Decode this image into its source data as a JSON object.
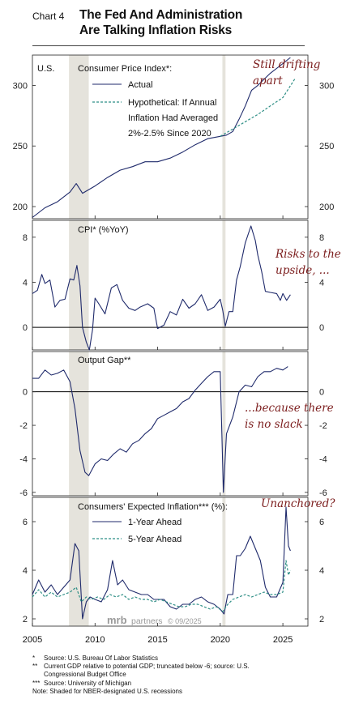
{
  "header": {
    "chart_number": "Chart 4",
    "title_line1": "The Fed And Administration",
    "title_line2": "Are Talking Inflation Risks"
  },
  "watermark": {
    "brand": "mrb",
    "word": "partners",
    "date": "© 09/2025"
  },
  "colors": {
    "actual": "#1f2a6b",
    "hypothetical": "#2f8f86",
    "annotation": "#7b1c1c",
    "recession": "#e5e3dc"
  },
  "footnotes": [
    {
      "mark": "*",
      "text": "Source: U.S. Bureau Of Labor Statistics"
    },
    {
      "mark": "**",
      "text": "Current GDP relative to potential GDP; truncated below -6; source: U.S."
    },
    {
      "mark": "",
      "text": "Congressional Budget Office"
    },
    {
      "mark": "***",
      "text": "Source: University of Michigan"
    },
    {
      "mark": "",
      "text": "Note: Shaded for NBER-designated U.S. recessions"
    }
  ],
  "chart_data": [
    {
      "type": "line",
      "corner_label": "U.S.",
      "title": "Consumer Price Index*:",
      "annotation": [
        "Still drifting",
        "apart"
      ],
      "ylim": [
        190,
        325
      ],
      "yticks": [
        200,
        250,
        300
      ],
      "recessions": [
        [
          2007.92,
          2009.5
        ],
        [
          2020.17,
          2020.42
        ]
      ],
      "legend": {
        "placement": "top-left",
        "entries": [
          "Actual",
          "Hypothetical: If Annual",
          "Inflation Had Averaged",
          "2%-2.5% Since 2020"
        ]
      },
      "series": [
        {
          "name": "Actual",
          "style": "solid",
          "color": "#1f2a6b",
          "x": [
            2005.0,
            2006.0,
            2007.0,
            2008.0,
            2008.5,
            2009.0,
            2010.0,
            2011.0,
            2012.0,
            2013.0,
            2014.0,
            2015.0,
            2016.0,
            2017.0,
            2018.0,
            2019.0,
            2020.0,
            2020.5,
            2021.0,
            2021.5,
            2022.0,
            2022.5,
            2023.0,
            2024.0,
            2025.0,
            2025.6
          ],
          "y": [
            191,
            199,
            204,
            212,
            219,
            211,
            217,
            224,
            230,
            233,
            237,
            237,
            240,
            245,
            251,
            256,
            258,
            259,
            262,
            272,
            283,
            296,
            300,
            310,
            318,
            323
          ]
        },
        {
          "name": "Hypothetical",
          "style": "dashed",
          "color": "#2f8f86",
          "x": [
            2020.0,
            2021.0,
            2022.0,
            2023.0,
            2024.0,
            2025.0,
            2026.0
          ],
          "y": [
            258,
            264,
            270,
            276,
            283,
            290,
            306
          ]
        }
      ]
    },
    {
      "type": "line",
      "title": "CPI* (%YoY)",
      "annotation": [
        "Risks to the",
        "upside, ..."
      ],
      "ylim": [
        -2,
        9.5
      ],
      "yticks": [
        0,
        4,
        8
      ],
      "zero_line": true,
      "recessions": [
        [
          2007.92,
          2009.5
        ],
        [
          2020.17,
          2020.42
        ]
      ],
      "series": [
        {
          "name": "CPI YoY",
          "style": "solid",
          "color": "#1f2a6b",
          "x": [
            2005.0,
            2005.4,
            2005.75,
            2006.0,
            2006.4,
            2006.8,
            2007.2,
            2007.6,
            2008.0,
            2008.3,
            2008.55,
            2008.8,
            2009.0,
            2009.3,
            2009.55,
            2009.8,
            2010.0,
            2010.3,
            2010.8,
            2011.3,
            2011.75,
            2012.2,
            2012.7,
            2013.2,
            2013.6,
            2014.2,
            2014.7,
            2015.0,
            2015.5,
            2016.0,
            2016.5,
            2017.0,
            2017.5,
            2018.0,
            2018.5,
            2019.0,
            2019.5,
            2020.0,
            2020.2,
            2020.4,
            2020.7,
            2021.0,
            2021.3,
            2021.6,
            2022.0,
            2022.45,
            2022.8,
            2023.0,
            2023.3,
            2023.6,
            2024.0,
            2024.5,
            2024.8,
            2025.0,
            2025.3,
            2025.6
          ],
          "y": [
            3.0,
            3.3,
            4.7,
            3.9,
            4.2,
            1.8,
            2.4,
            2.5,
            4.3,
            4.2,
            5.5,
            3.7,
            0.0,
            -1.3,
            -2.0,
            -0.2,
            2.6,
            2.1,
            1.2,
            3.5,
            3.8,
            2.4,
            1.7,
            1.5,
            1.8,
            2.1,
            1.7,
            -0.1,
            0.2,
            1.4,
            1.1,
            2.5,
            1.7,
            2.1,
            2.9,
            1.5,
            1.8,
            2.5,
            1.5,
            0.1,
            1.4,
            1.4,
            4.2,
            5.4,
            7.5,
            9.0,
            7.7,
            6.4,
            5.0,
            3.2,
            3.1,
            3.0,
            2.4,
            3.0,
            2.4,
            2.9
          ]
        }
      ]
    },
    {
      "type": "line",
      "title": "Output Gap**",
      "annotation": [
        "...because there",
        "is no slack"
      ],
      "ylim": [
        -6.2,
        2.4
      ],
      "yticks": [
        -6,
        -4,
        -2,
        0
      ],
      "zero_line": true,
      "recessions": [
        [
          2007.92,
          2009.5
        ],
        [
          2020.17,
          2020.42
        ]
      ],
      "series": [
        {
          "name": "Output Gap",
          "style": "solid",
          "color": "#1f2a6b",
          "x": [
            2005.0,
            2005.5,
            2006.0,
            2006.5,
            2007.0,
            2007.5,
            2008.0,
            2008.4,
            2008.8,
            2009.2,
            2009.5,
            2010.0,
            2010.5,
            2011.0,
            2011.5,
            2012.0,
            2012.5,
            2013.0,
            2013.5,
            2014.0,
            2014.5,
            2015.0,
            2015.5,
            2016.0,
            2016.5,
            2017.0,
            2017.5,
            2018.0,
            2018.5,
            2019.0,
            2019.5,
            2020.0,
            2020.25,
            2020.5,
            2021.0,
            2021.5,
            2022.0,
            2022.5,
            2023.0,
            2023.5,
            2024.0,
            2024.5,
            2025.0,
            2025.4
          ],
          "y": [
            0.8,
            0.8,
            1.3,
            1.0,
            1.1,
            1.3,
            0.6,
            -1.0,
            -3.5,
            -4.8,
            -5.0,
            -4.3,
            -4.0,
            -4.1,
            -3.7,
            -3.4,
            -3.6,
            -3.1,
            -2.9,
            -2.5,
            -2.2,
            -1.6,
            -1.4,
            -1.2,
            -1.0,
            -0.6,
            -0.4,
            0.1,
            0.5,
            0.9,
            1.2,
            1.2,
            -6.0,
            -2.5,
            -1.5,
            0.0,
            0.4,
            0.3,
            0.9,
            1.2,
            1.2,
            1.4,
            1.3,
            1.5
          ]
        }
      ]
    },
    {
      "type": "line",
      "title": "Consumers' Expected Inflation*** (%):",
      "annotation": [
        "Unanchored?"
      ],
      "ylim": [
        1.7,
        7.0
      ],
      "yticks": [
        2,
        4,
        6
      ],
      "xlim": [
        2005,
        2027
      ],
      "xticks": [
        2005,
        2010,
        2015,
        2020,
        2025
      ],
      "recessions": [
        [
          2007.92,
          2009.5
        ],
        [
          2020.17,
          2020.42
        ]
      ],
      "legend": {
        "placement": "top-left",
        "entries": [
          "1-Year Ahead",
          "5-Year Ahead"
        ]
      },
      "series": [
        {
          "name": "1-Year Ahead",
          "style": "solid",
          "color": "#1f2a6b",
          "x": [
            2005.0,
            2005.5,
            2006.0,
            2006.5,
            2007.0,
            2007.5,
            2008.0,
            2008.4,
            2008.7,
            2009.0,
            2009.3,
            2009.6,
            2010.0,
            2010.5,
            2011.0,
            2011.4,
            2011.8,
            2012.2,
            2012.7,
            2013.2,
            2013.7,
            2014.2,
            2014.7,
            2015.0,
            2015.5,
            2016.0,
            2016.5,
            2017.0,
            2017.5,
            2018.0,
            2018.5,
            2019.0,
            2019.5,
            2020.0,
            2020.3,
            2020.6,
            2021.0,
            2021.3,
            2021.6,
            2022.0,
            2022.4,
            2022.8,
            2023.2,
            2023.6,
            2024.0,
            2024.5,
            2025.0,
            2025.25,
            2025.45,
            2025.6
          ],
          "y": [
            3.0,
            3.6,
            3.1,
            3.4,
            3.0,
            3.3,
            3.6,
            5.1,
            4.8,
            2.0,
            2.7,
            2.9,
            2.8,
            2.7,
            3.2,
            4.4,
            3.4,
            3.6,
            3.2,
            3.1,
            3.0,
            3.0,
            2.8,
            2.8,
            2.8,
            2.5,
            2.4,
            2.6,
            2.6,
            2.8,
            2.9,
            2.7,
            2.6,
            2.4,
            2.2,
            3.0,
            3.0,
            4.6,
            4.6,
            4.9,
            5.4,
            4.9,
            4.4,
            3.3,
            2.9,
            2.9,
            3.5,
            6.6,
            5.0,
            4.8
          ]
        },
        {
          "name": "5-Year Ahead",
          "style": "dashed",
          "color": "#2f8f86",
          "x": [
            2005.0,
            2005.5,
            2006.0,
            2006.5,
            2007.0,
            2007.5,
            2008.0,
            2008.5,
            2008.9,
            2009.3,
            2009.7,
            2010.2,
            2010.7,
            2011.2,
            2011.7,
            2012.2,
            2012.7,
            2013.2,
            2013.7,
            2014.2,
            2014.7,
            2015.2,
            2015.7,
            2016.2,
            2016.7,
            2017.2,
            2017.7,
            2018.2,
            2018.7,
            2019.2,
            2019.7,
            2020.2,
            2020.6,
            2021.0,
            2021.5,
            2022.0,
            2022.5,
            2023.0,
            2023.5,
            2024.0,
            2024.5,
            2025.0,
            2025.25,
            2025.45,
            2025.6
          ],
          "y": [
            2.9,
            3.2,
            2.9,
            3.1,
            2.9,
            3.0,
            3.1,
            3.3,
            2.7,
            2.9,
            2.8,
            2.9,
            2.8,
            3.0,
            2.9,
            3.0,
            2.8,
            2.9,
            2.8,
            2.8,
            2.7,
            2.8,
            2.7,
            2.6,
            2.5,
            2.5,
            2.6,
            2.6,
            2.5,
            2.4,
            2.5,
            2.3,
            2.6,
            2.8,
            2.9,
            3.0,
            2.9,
            3.0,
            3.1,
            3.0,
            3.0,
            3.1,
            4.4,
            3.8,
            4.0
          ]
        }
      ]
    }
  ]
}
